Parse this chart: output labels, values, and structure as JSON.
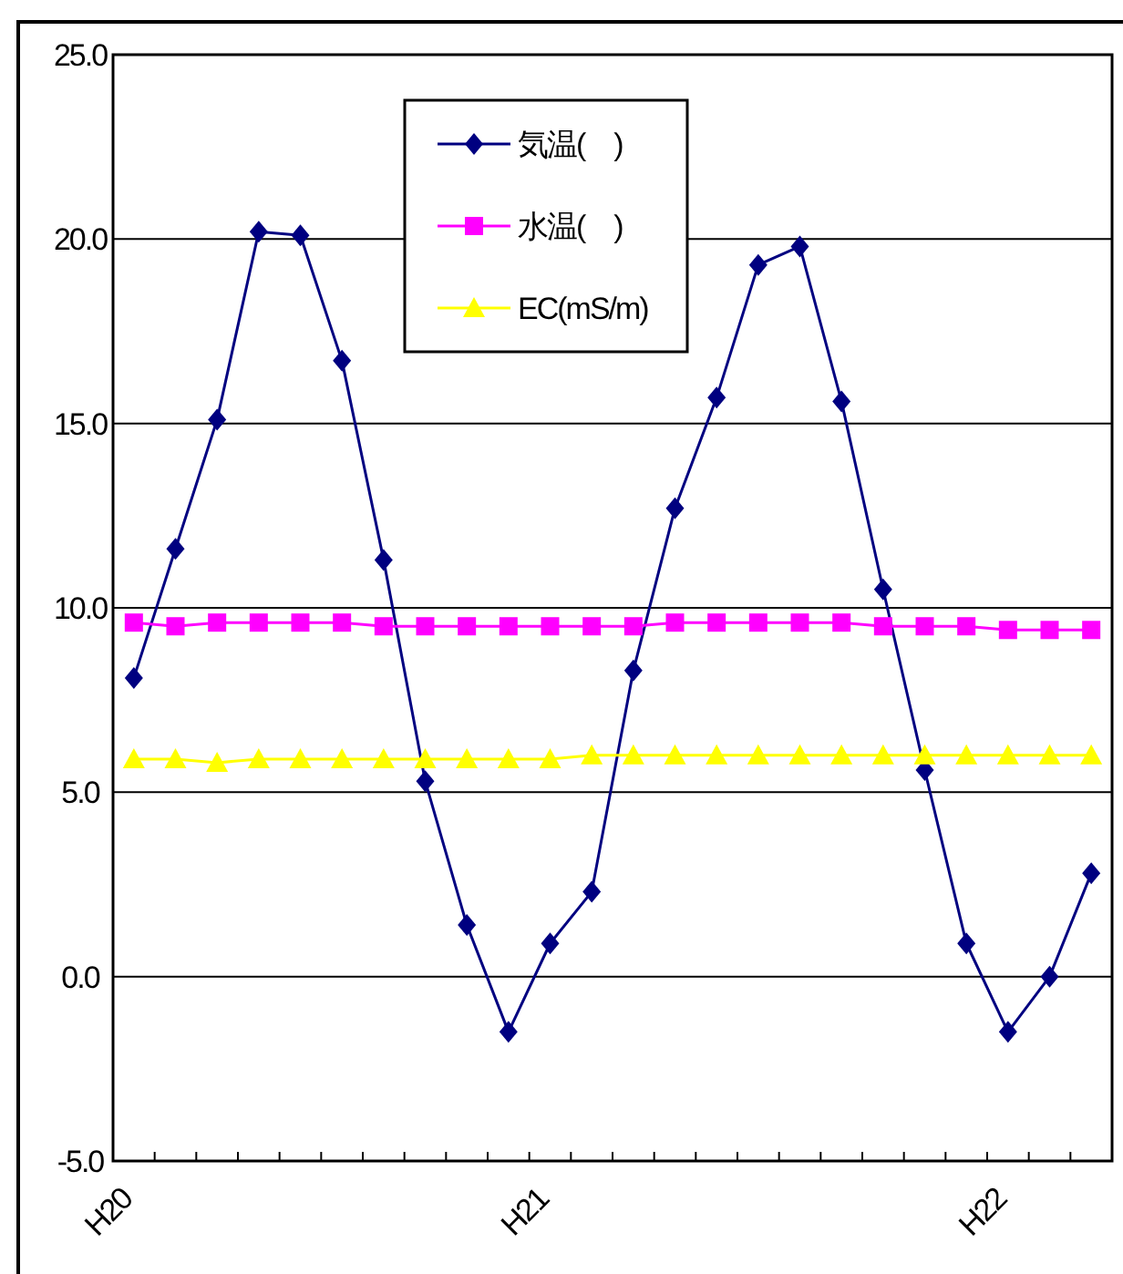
{
  "chart_data": {
    "type": "line",
    "categories": [
      "H20",
      null,
      null,
      null,
      null,
      null,
      null,
      null,
      null,
      null,
      "H21",
      null,
      null,
      null,
      null,
      null,
      null,
      null,
      null,
      null,
      null,
      "H22",
      null,
      null
    ],
    "series": [
      {
        "name": "気温(　)",
        "color": "#000080",
        "marker": "diamond",
        "values": [
          8.1,
          11.6,
          15.1,
          20.2,
          20.1,
          16.7,
          11.3,
          5.3,
          1.4,
          -1.5,
          0.9,
          2.3,
          8.3,
          12.7,
          15.7,
          19.3,
          19.8,
          15.6,
          10.5,
          5.6,
          0.9,
          -1.5,
          0.0,
          2.8
        ]
      },
      {
        "name": "水温(　)",
        "color": "#ff00ff",
        "marker": "square",
        "values": [
          9.6,
          9.5,
          9.6,
          9.6,
          9.6,
          9.6,
          9.5,
          9.5,
          9.5,
          9.5,
          9.5,
          9.5,
          9.5,
          9.6,
          9.6,
          9.6,
          9.6,
          9.6,
          9.5,
          9.5,
          9.5,
          9.4,
          9.4,
          9.4
        ]
      },
      {
        "name": "EC(mS/m)",
        "color": "#ffff00",
        "marker": "triangle",
        "values": [
          5.9,
          5.9,
          5.8,
          5.9,
          5.9,
          5.9,
          5.9,
          5.9,
          5.9,
          5.9,
          5.9,
          6.0,
          6.0,
          6.0,
          6.0,
          6.0,
          6.0,
          6.0,
          6.0,
          6.0,
          6.0,
          6.0,
          6.0,
          6.0
        ]
      }
    ],
    "ylim": [
      -5,
      25
    ],
    "yticks": [
      {
        "value": -5,
        "label": "-5.0"
      },
      {
        "value": 0,
        "label": "0.0"
      },
      {
        "value": 5,
        "label": "5.0"
      },
      {
        "value": 10,
        "label": "10.0"
      },
      {
        "value": 15,
        "label": "15.0"
      },
      {
        "value": 20,
        "label": "20.0"
      },
      {
        "value": 25,
        "label": "25.0"
      }
    ],
    "grid": "y",
    "legend": "top"
  }
}
